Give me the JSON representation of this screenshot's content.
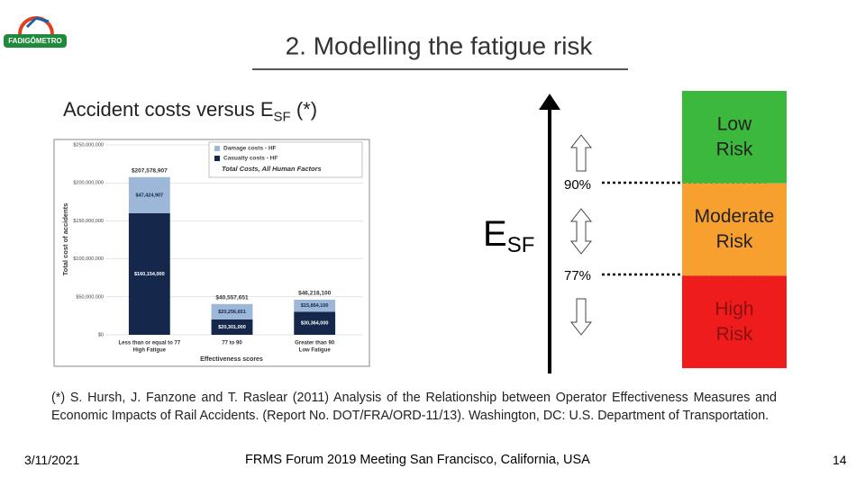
{
  "logo": "FADIGÔMETRO",
  "header": {
    "title": "2. Modelling the fatigue risk"
  },
  "subtitle": {
    "text": "Accident costs versus E",
    "subscript": "SF",
    "suffix": "(*)"
  },
  "chart_data": {
    "type": "stacked-bar",
    "y_label": "Total cost of accidents",
    "x_label": "Effectiveness scores",
    "categories": [
      "Less than or equal to 77",
      "77 to 90",
      "Greater than 90"
    ],
    "category_notes": [
      "High Fatigue",
      null,
      "Low Fatigue"
    ],
    "series": [
      {
        "name": "Casualty costs - HF",
        "color": "#15284b",
        "values": [
          160154000,
          20301000,
          30364000
        ],
        "value_labels": [
          "$160,154,000",
          "$20,301,000",
          "$30,364,000"
        ]
      },
      {
        "name": "Damage costs - HF",
        "color": "#9db7d9",
        "values": [
          47424907,
          20256651,
          15854100
        ],
        "value_labels": [
          "$47,424,907",
          "$20,256,651",
          "$15,854,100"
        ]
      }
    ],
    "totals": {
      "name": "Total Costs, All Human Factors",
      "values": [
        207578907,
        40557651,
        46218100
      ],
      "value_labels": [
        "$207,578,907",
        "$40,557,651",
        "$46,218,100"
      ]
    },
    "ylim": [
      0,
      250000000
    ],
    "yticks": [
      {
        "value": 0,
        "label": "$0"
      },
      {
        "value": 50000000,
        "label": "$50,000,000"
      },
      {
        "value": 100000000,
        "label": "$100,000,000"
      },
      {
        "value": 150000000,
        "label": "$150,000,000"
      },
      {
        "value": 200000000,
        "label": "$200,000,000"
      },
      {
        "value": 250000000,
        "label": "$250,000,000"
      }
    ]
  },
  "risk": {
    "axis": {
      "main": "E",
      "subscript": "SF"
    },
    "levels": [
      {
        "label": "Low Risk",
        "color": "#3cb93c"
      },
      {
        "label": "Moderate Risk",
        "color": "#f7a030"
      },
      {
        "label": "High Risk",
        "color": "#ee1c1c"
      }
    ],
    "thresholds": [
      "90%",
      "77%"
    ]
  },
  "footnote": "(*) S. Hursh, J. Fanzone and T. Raslear (2011) Analysis of the Relationship between Operator Effectiveness Measures and Economic Impacts of Rail Accidents. (Report No. DOT/FRA/ORD-11/13). Washington, DC: U.S. Department of Transportation.",
  "footer": {
    "date": "3/11/2021",
    "event": "FRMS Forum 2019 Meeting San Francisco, California, USA",
    "page": "14"
  }
}
